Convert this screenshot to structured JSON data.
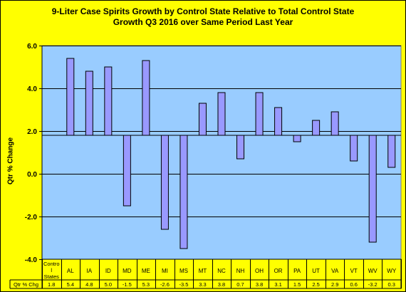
{
  "title_lines": [
    "9-Liter Case Spirits Growth by Control State Relative to Total Control State",
    "Growth Q3 2016 over Same Period Last Year"
  ],
  "colors": {
    "background": "#ffff00",
    "plot_area": "#99ccff",
    "bar_fill": "#9999ff",
    "bar_stroke": "#000000",
    "gridline": "#000000"
  },
  "chart_data": {
    "type": "bar",
    "title": "9-Liter Case Spirits Growth by Control State Relative to Total Control State Growth Q3 2016 over Same Period Last Year",
    "ylabel": "Qtr % Change",
    "xlabel": "",
    "ylim": [
      -4.0,
      6.0
    ],
    "y_ticks": [
      6.0,
      4.0,
      2.0,
      0.0,
      -2.0,
      -4.0
    ],
    "y_tick_labels": [
      "6.0",
      "4.0",
      "2.0",
      "0.0",
      "-2.0",
      "-4.0"
    ],
    "gridlines": true,
    "baseline_value": 1.8,
    "baseline_row_label": "Control States",
    "baseline_label_lines": [
      "Contro",
      "l",
      "States"
    ],
    "data_table_row_label": "Qtr % Chg",
    "categories": [
      "AL",
      "IA",
      "ID",
      "MD",
      "ME",
      "MI",
      "MS",
      "MT",
      "NC",
      "NH",
      "OH",
      "OR",
      "PA",
      "UT",
      "VA",
      "VT",
      "WV",
      "WY"
    ],
    "values": [
      5.4,
      4.8,
      5.0,
      -1.5,
      5.3,
      -2.6,
      -3.5,
      3.3,
      3.8,
      0.7,
      3.8,
      3.1,
      1.5,
      2.5,
      2.9,
      0.6,
      -3.2,
      0.3
    ],
    "value_labels": [
      "5.4",
      "4.8",
      "5.0",
      "-1.5",
      "5.3",
      "-2.6",
      "-3.5",
      "3.3",
      "3.8",
      "0.7",
      "3.8",
      "3.1",
      "1.5",
      "2.5",
      "2.9",
      "0.6",
      "-3.2",
      "0.3"
    ],
    "baseline_value_label": "1.8"
  }
}
